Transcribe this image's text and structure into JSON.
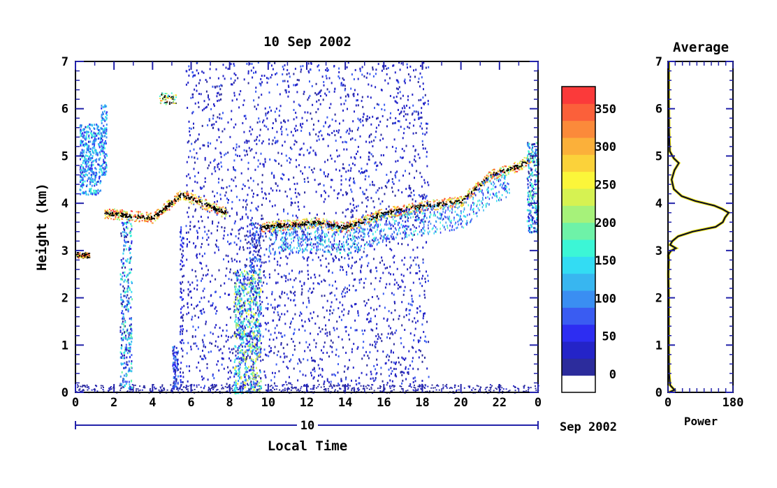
{
  "chart_data": [
    {
      "type": "heatmap",
      "title": "10 Sep 2002",
      "xlabel": "Local Time",
      "ylabel": "Height (km)",
      "xlim": [
        0,
        24
      ],
      "ylim": [
        0,
        7
      ],
      "x_ticks": [
        "0",
        "2",
        "4",
        "6",
        "8",
        "10",
        "12",
        "14",
        "16",
        "18",
        "20",
        "22",
        "0"
      ],
      "y_ticks": [
        "0",
        "1",
        "2",
        "3",
        "4",
        "5",
        "6",
        "7"
      ],
      "date_axis": {
        "day_label": "10",
        "month_year": "Sep 2002"
      },
      "colorbar": {
        "ticks": [
          "0",
          "50",
          "100",
          "150",
          "200",
          "250",
          "300",
          "350"
        ],
        "range": [
          0,
          380
        ],
        "colors": [
          "#ffffff",
          "#2c2c9c",
          "#2424c8",
          "#2d2df2",
          "#3a5cf2",
          "#3a8ef2",
          "#38b6f0",
          "#33dcf3",
          "#3cf6d6",
          "#6ef2a8",
          "#a6f27a",
          "#d6f252",
          "#fbf63a",
          "#fbd23a",
          "#fbb03a",
          "#fb8a3a",
          "#fb603a",
          "#fb3a3a"
        ]
      },
      "features": [
        {
          "name": "cloud base layer",
          "x": [
            1.5,
            4,
            5.5,
            9.5,
            12.5,
            14,
            16,
            18,
            20,
            21.5,
            23,
            23.7
          ],
          "y": [
            3.8,
            3.7,
            4.2,
            3.5,
            3.6,
            3.5,
            3.8,
            3.95,
            4.05,
            4.6,
            4.8,
            5.0
          ]
        }
      ]
    },
    {
      "type": "line",
      "title": "Average",
      "xlabel": "Power",
      "ylabel": "",
      "xlim": [
        0,
        180
      ],
      "ylim": [
        0,
        7
      ],
      "x_ticks": [
        "0",
        "180"
      ],
      "y_ticks": [
        "0",
        "1",
        "2",
        "3",
        "4",
        "5",
        "6",
        "7"
      ],
      "series": [
        {
          "x": [
            2,
            18,
            6,
            3,
            2,
            2,
            1,
            2,
            1,
            4,
            9,
            22,
            6,
            12,
            28,
            68,
            132,
            152,
            158,
            168,
            150,
            128,
            75,
            38,
            16,
            10,
            18,
            30,
            16,
            5,
            3,
            2,
            2
          ],
          "y": [
            0.0,
            0.05,
            0.15,
            0.4,
            1.0,
            2.0,
            2.5,
            2.8,
            2.9,
            2.95,
            3.0,
            3.05,
            3.12,
            3.2,
            3.3,
            3.4,
            3.5,
            3.6,
            3.7,
            3.8,
            3.88,
            3.95,
            4.05,
            4.15,
            4.3,
            4.5,
            4.7,
            4.85,
            4.95,
            5.1,
            5.5,
            6.2,
            7.0
          ]
        }
      ]
    }
  ]
}
